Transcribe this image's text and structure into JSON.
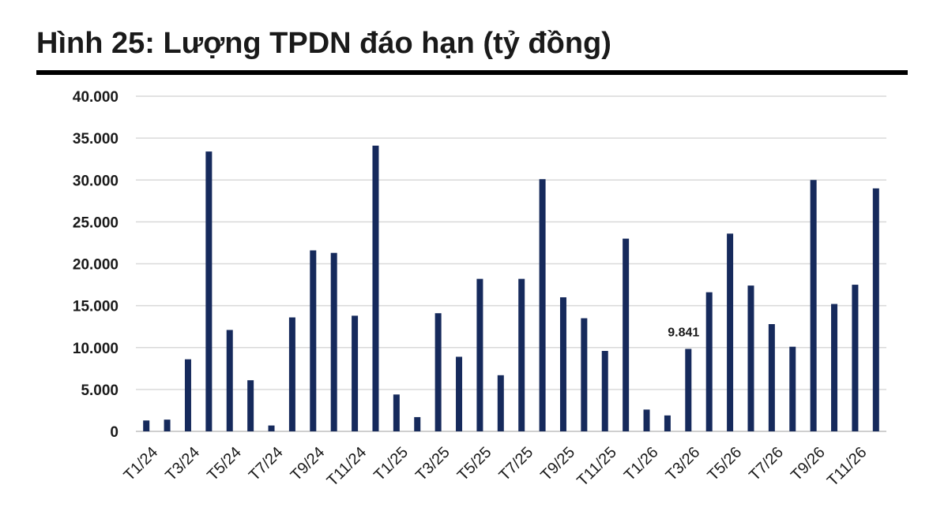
{
  "chart_data": {
    "type": "bar",
    "title": "Hình 25: Lượng TPDN đáo hạn (tỷ đồng)",
    "categories": [
      "T1/24",
      "T2/24",
      "T3/24",
      "T4/24",
      "T5/24",
      "T6/24",
      "T7/24",
      "T8/24",
      "T9/24",
      "T10/24",
      "T11/24",
      "T12/24",
      "T1/25",
      "T2/25",
      "T3/25",
      "T4/25",
      "T5/25",
      "T6/25",
      "T7/25",
      "T8/25",
      "T9/25",
      "T10/25",
      "T11/25",
      "T12/25",
      "T1/26",
      "T2/26",
      "T3/26",
      "T4/26",
      "T5/26",
      "T6/26",
      "T7/26",
      "T8/26",
      "T9/26",
      "T10/26",
      "T11/26",
      "T12/26"
    ],
    "tick_labels": [
      "T1/24",
      "T3/24",
      "T5/24",
      "T7/24",
      "T9/24",
      "T11/24",
      "T1/25",
      "T3/25",
      "T5/25",
      "T7/25",
      "T9/25",
      "T11/25",
      "T1/26",
      "T3/26",
      "T5/26",
      "T7/26",
      "T9/26",
      "T11/26"
    ],
    "values": [
      1300,
      1400,
      8600,
      33400,
      12100,
      6100,
      700,
      13600,
      21600,
      21300,
      13800,
      34100,
      4400,
      1700,
      14100,
      8900,
      18200,
      6700,
      18200,
      30100,
      16000,
      13500,
      9600,
      23000,
      2600,
      1900,
      9841,
      16600,
      23600,
      17400,
      12800,
      10100,
      30000,
      15200,
      17500,
      29000
    ],
    "y_ticks": [
      "0",
      "5.000",
      "10.000",
      "15.000",
      "20.000",
      "25.000",
      "30.000",
      "35.000",
      "40.000"
    ],
    "ylim": [
      0,
      40000
    ],
    "bar_color": "#162a5c",
    "grid": true,
    "annotations": [
      {
        "category": "T3/26",
        "text": "9.841"
      }
    ]
  }
}
